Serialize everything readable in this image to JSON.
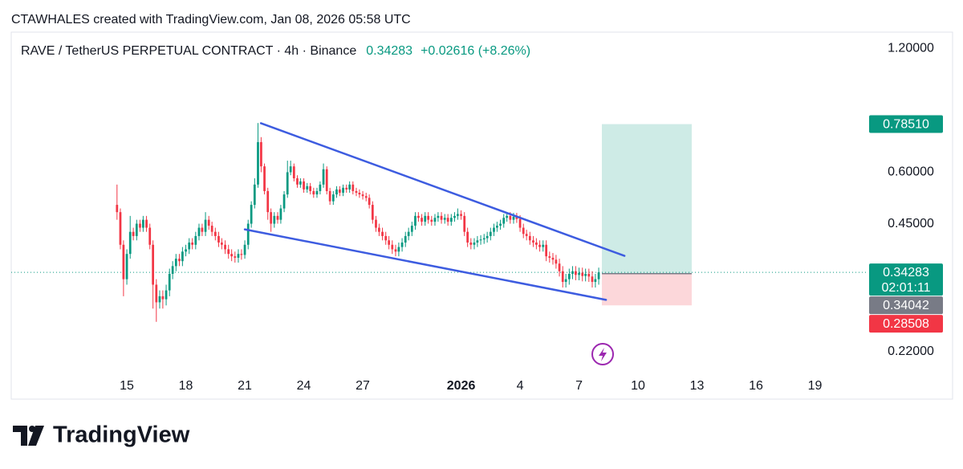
{
  "header": {
    "attribution": "CTAWHALES created with TradingView.com, Jan 08, 2026 05:58 UTC"
  },
  "chart_data": {
    "type": "candlestick",
    "title": "RAVE / TetherUS PERPETUAL CONTRACT · 4h · Binance",
    "last_price": 0.34283,
    "change": "+0.02616 (+8.26%)",
    "countdown": "02:01:11",
    "log_scale": true,
    "grid": false,
    "up_color": "#089981",
    "down_color": "#f23645",
    "xlim": [
      9.12,
      52.63
    ],
    "xticks": [
      15,
      18,
      21,
      24,
      27,
      {
        "value": 32,
        "label": "2026"
      },
      {
        "value": 35,
        "label": "4"
      },
      {
        "value": 38,
        "label": "7"
      },
      {
        "value": 41,
        "label": "10"
      },
      {
        "value": 44,
        "label": "13"
      },
      {
        "value": 47,
        "label": "16"
      },
      {
        "value": 50,
        "label": "19"
      }
    ],
    "ylim": [
      0.1975,
      1.313
    ],
    "yticks": [
      {
        "value": 1.2,
        "label": "1.20000"
      },
      {
        "value": 0.6,
        "label": "0.60000"
      },
      {
        "value": 0.45,
        "label": "0.45000"
      },
      {
        "value": 0.22,
        "label": "0.22000"
      }
    ],
    "x": [
      14.5,
      14.67,
      14.83,
      15,
      15.17,
      15.33,
      15.5,
      15.67,
      15.83,
      16,
      16.17,
      16.33,
      16.5,
      16.67,
      16.83,
      17,
      17.17,
      17.33,
      17.5,
      17.67,
      17.83,
      18,
      18.17,
      18.33,
      18.5,
      18.67,
      18.83,
      19,
      19.17,
      19.33,
      19.5,
      19.67,
      19.83,
      20,
      20.17,
      20.33,
      20.5,
      20.67,
      20.83,
      21,
      21.17,
      21.33,
      21.5,
      21.67,
      21.83,
      22,
      22.17,
      22.33,
      22.5,
      22.67,
      22.83,
      23,
      23.17,
      23.33,
      23.5,
      23.67,
      23.83,
      24,
      24.17,
      24.33,
      24.5,
      24.67,
      24.83,
      25,
      25.17,
      25.33,
      25.5,
      25.67,
      25.83,
      26,
      26.17,
      26.33,
      26.5,
      26.67,
      26.83,
      27,
      27.17,
      27.33,
      27.5,
      27.67,
      27.83,
      28,
      28.17,
      28.33,
      28.5,
      28.67,
      28.83,
      29,
      29.17,
      29.33,
      29.5,
      29.67,
      29.83,
      30,
      30.17,
      30.33,
      30.5,
      30.67,
      30.83,
      31,
      31.17,
      31.33,
      31.5,
      31.67,
      31.83,
      32,
      32.17,
      32.33,
      32.5,
      32.67,
      32.83,
      33,
      33.17,
      33.33,
      33.5,
      33.67,
      33.83,
      34,
      34.17,
      34.33,
      34.5,
      34.67,
      34.83,
      35,
      35.17,
      35.33,
      35.5,
      35.67,
      35.83,
      36,
      36.17,
      36.33,
      36.5,
      36.67,
      36.83,
      37,
      37.17,
      37.33,
      37.5,
      37.67,
      37.83,
      38,
      38.17,
      38.33,
      38.5,
      38.67,
      38.83,
      39
    ],
    "open": [
      0.5,
      0.48,
      0.4,
      0.33,
      0.38,
      0.43,
      0.42,
      0.45,
      0.44,
      0.46,
      0.44,
      0.4,
      0.32,
      0.29,
      0.3,
      0.295,
      0.31,
      0.34,
      0.355,
      0.37,
      0.365,
      0.385,
      0.39,
      0.405,
      0.4,
      0.42,
      0.44,
      0.43,
      0.46,
      0.445,
      0.43,
      0.42,
      0.405,
      0.4,
      0.39,
      0.38,
      0.375,
      0.372,
      0.38,
      0.378,
      0.4,
      0.45,
      0.5,
      0.56,
      0.71,
      0.62,
      0.54,
      0.48,
      0.45,
      0.47,
      0.46,
      0.49,
      0.53,
      0.6,
      0.62,
      0.58,
      0.56,
      0.57,
      0.545,
      0.555,
      0.54,
      0.53,
      0.54,
      0.56,
      0.61,
      0.54,
      0.51,
      0.53,
      0.545,
      0.535,
      0.55,
      0.545,
      0.56,
      0.54,
      0.535,
      0.53,
      0.525,
      0.52,
      0.5,
      0.46,
      0.44,
      0.43,
      0.42,
      0.41,
      0.4,
      0.39,
      0.385,
      0.395,
      0.405,
      0.42,
      0.43,
      0.445,
      0.47,
      0.465,
      0.455,
      0.47,
      0.46,
      0.455,
      0.465,
      0.47,
      0.46,
      0.465,
      0.455,
      0.465,
      0.47,
      0.475,
      0.47,
      0.43,
      0.405,
      0.4,
      0.405,
      0.41,
      0.412,
      0.415,
      0.42,
      0.43,
      0.44,
      0.445,
      0.45,
      0.465,
      0.47,
      0.46,
      0.468,
      0.462,
      0.44,
      0.425,
      0.42,
      0.41,
      0.405,
      0.4,
      0.395,
      0.4,
      0.375,
      0.372,
      0.368,
      0.36,
      0.345,
      0.325,
      0.33,
      0.34,
      0.345,
      0.338,
      0.342,
      0.336,
      0.34,
      0.335,
      0.325,
      0.33
    ],
    "high": [
      0.56,
      0.49,
      0.41,
      0.39,
      0.47,
      0.44,
      0.46,
      0.46,
      0.47,
      0.47,
      0.45,
      0.41,
      0.33,
      0.31,
      0.31,
      0.32,
      0.35,
      0.365,
      0.38,
      0.38,
      0.395,
      0.4,
      0.415,
      0.415,
      0.43,
      0.45,
      0.45,
      0.48,
      0.47,
      0.455,
      0.44,
      0.43,
      0.415,
      0.41,
      0.4,
      0.39,
      0.385,
      0.39,
      0.39,
      0.41,
      0.46,
      0.51,
      0.58,
      0.79,
      0.73,
      0.63,
      0.55,
      0.49,
      0.48,
      0.48,
      0.5,
      0.54,
      0.64,
      0.64,
      0.63,
      0.59,
      0.58,
      0.58,
      0.565,
      0.565,
      0.55,
      0.55,
      0.57,
      0.63,
      0.62,
      0.55,
      0.54,
      0.555,
      0.555,
      0.56,
      0.56,
      0.57,
      0.57,
      0.55,
      0.545,
      0.54,
      0.535,
      0.53,
      0.51,
      0.47,
      0.45,
      0.44,
      0.43,
      0.42,
      0.41,
      0.4,
      0.405,
      0.415,
      0.43,
      0.44,
      0.455,
      0.48,
      0.48,
      0.475,
      0.48,
      0.48,
      0.47,
      0.475,
      0.48,
      0.48,
      0.475,
      0.475,
      0.475,
      0.48,
      0.49,
      0.485,
      0.48,
      0.44,
      0.415,
      0.415,
      0.42,
      0.422,
      0.425,
      0.43,
      0.44,
      0.45,
      0.455,
      0.46,
      0.475,
      0.48,
      0.48,
      0.478,
      0.478,
      0.472,
      0.45,
      0.435,
      0.43,
      0.42,
      0.415,
      0.41,
      0.41,
      0.41,
      0.385,
      0.382,
      0.378,
      0.37,
      0.355,
      0.34,
      0.35,
      0.355,
      0.355,
      0.352,
      0.352,
      0.35,
      0.35,
      0.345,
      0.34,
      0.352
    ],
    "low": [
      0.46,
      0.39,
      0.3,
      0.32,
      0.37,
      0.41,
      0.41,
      0.43,
      0.43,
      0.43,
      0.39,
      0.28,
      0.26,
      0.28,
      0.28,
      0.285,
      0.3,
      0.33,
      0.345,
      0.355,
      0.355,
      0.375,
      0.38,
      0.39,
      0.39,
      0.41,
      0.42,
      0.42,
      0.435,
      0.42,
      0.41,
      0.395,
      0.39,
      0.38,
      0.37,
      0.365,
      0.362,
      0.362,
      0.368,
      0.37,
      0.39,
      0.44,
      0.49,
      0.55,
      0.6,
      0.53,
      0.46,
      0.43,
      0.44,
      0.45,
      0.45,
      0.48,
      0.52,
      0.59,
      0.57,
      0.55,
      0.55,
      0.535,
      0.535,
      0.53,
      0.52,
      0.52,
      0.53,
      0.55,
      0.53,
      0.5,
      0.5,
      0.52,
      0.525,
      0.525,
      0.535,
      0.535,
      0.53,
      0.525,
      0.52,
      0.515,
      0.51,
      0.49,
      0.45,
      0.43,
      0.42,
      0.41,
      0.4,
      0.39,
      0.38,
      0.375,
      0.375,
      0.385,
      0.395,
      0.41,
      0.42,
      0.435,
      0.455,
      0.445,
      0.445,
      0.45,
      0.445,
      0.445,
      0.455,
      0.45,
      0.45,
      0.445,
      0.445,
      0.455,
      0.46,
      0.46,
      0.42,
      0.395,
      0.39,
      0.39,
      0.395,
      0.4,
      0.402,
      0.405,
      0.41,
      0.42,
      0.43,
      0.435,
      0.44,
      0.455,
      0.45,
      0.45,
      0.452,
      0.43,
      0.415,
      0.41,
      0.4,
      0.395,
      0.39,
      0.385,
      0.385,
      0.365,
      0.362,
      0.358,
      0.35,
      0.335,
      0.315,
      0.315,
      0.32,
      0.33,
      0.328,
      0.328,
      0.326,
      0.326,
      0.325,
      0.315,
      0.315,
      0.32
    ],
    "close": [
      0.48,
      0.4,
      0.33,
      0.38,
      0.43,
      0.42,
      0.45,
      0.44,
      0.46,
      0.44,
      0.4,
      0.32,
      0.29,
      0.3,
      0.295,
      0.31,
      0.34,
      0.355,
      0.37,
      0.365,
      0.385,
      0.39,
      0.405,
      0.4,
      0.42,
      0.44,
      0.43,
      0.46,
      0.445,
      0.43,
      0.42,
      0.405,
      0.4,
      0.39,
      0.38,
      0.375,
      0.372,
      0.38,
      0.378,
      0.4,
      0.45,
      0.5,
      0.56,
      0.71,
      0.62,
      0.54,
      0.48,
      0.45,
      0.47,
      0.46,
      0.49,
      0.53,
      0.6,
      0.62,
      0.58,
      0.56,
      0.57,
      0.545,
      0.555,
      0.54,
      0.53,
      0.54,
      0.56,
      0.61,
      0.54,
      0.51,
      0.53,
      0.545,
      0.535,
      0.55,
      0.545,
      0.56,
      0.54,
      0.535,
      0.53,
      0.525,
      0.52,
      0.5,
      0.46,
      0.44,
      0.43,
      0.42,
      0.41,
      0.4,
      0.39,
      0.385,
      0.395,
      0.405,
      0.42,
      0.43,
      0.445,
      0.47,
      0.465,
      0.455,
      0.47,
      0.46,
      0.455,
      0.465,
      0.47,
      0.46,
      0.465,
      0.455,
      0.465,
      0.47,
      0.475,
      0.47,
      0.43,
      0.405,
      0.4,
      0.405,
      0.41,
      0.412,
      0.415,
      0.42,
      0.43,
      0.44,
      0.445,
      0.45,
      0.465,
      0.47,
      0.46,
      0.468,
      0.462,
      0.44,
      0.425,
      0.42,
      0.41,
      0.405,
      0.4,
      0.395,
      0.4,
      0.375,
      0.372,
      0.368,
      0.36,
      0.345,
      0.325,
      0.33,
      0.34,
      0.345,
      0.338,
      0.342,
      0.336,
      0.34,
      0.335,
      0.325,
      0.33,
      0.34283
    ],
    "trendline_color": "#3d5ce0",
    "trendlines": [
      {
        "x": [
          21.82,
          40.31
        ],
        "y": [
          0.789,
          0.376
        ]
      },
      {
        "x": [
          21,
          39.37
        ],
        "y": [
          0.436,
          0.294
        ]
      }
    ],
    "position": {
      "x": [
        39.16,
        43.73
      ],
      "target": {
        "value": 0.7851,
        "label": "0.78510"
      },
      "entry": 0.34042,
      "stop": 0.28508
    }
  },
  "footer": {
    "logo": "TradingView"
  }
}
